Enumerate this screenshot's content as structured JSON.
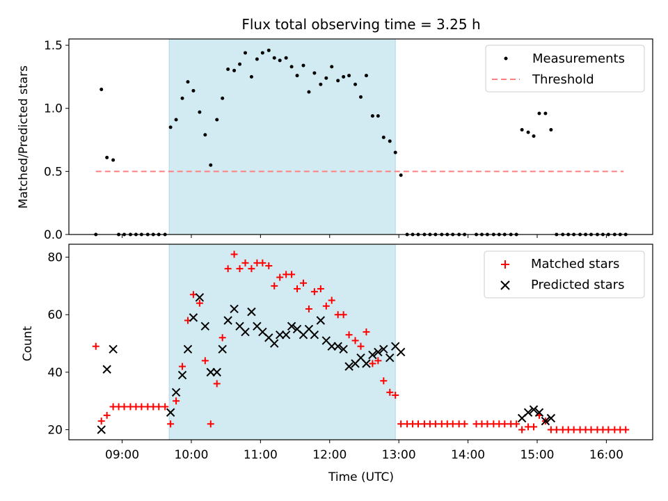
{
  "title": "Flux total observing time = 3.25 h",
  "colors": {
    "span": "#add8e6",
    "measure": "#000000",
    "threshold": "#ff7f7f",
    "matched": "#ff0000",
    "predicted": "#000000"
  },
  "chart_data": [
    {
      "type": "scatter",
      "ylabel": "Matched/Predicted stars",
      "ylim": [
        0,
        1.55
      ],
      "yticks": [
        "0.0",
        "0.5",
        "1.0",
        "1.5"
      ],
      "legend": [
        "Measurements",
        "Threshold"
      ],
      "threshold": 0.5,
      "threshold_range_h": [
        8.62,
        16.25
      ],
      "observing_span_h": [
        9.68,
        12.95
      ],
      "series": [
        {
          "name": "Measurements",
          "points": [
            [
              8.62,
              0
            ],
            [
              8.7,
              1.15
            ],
            [
              8.78,
              0.61
            ],
            [
              8.87,
              0.59
            ],
            [
              8.95,
              0
            ],
            [
              9.03,
              0
            ],
            [
              9.12,
              0
            ],
            [
              9.2,
              0
            ],
            [
              9.28,
              0
            ],
            [
              9.37,
              0
            ],
            [
              9.45,
              0
            ],
            [
              9.53,
              0
            ],
            [
              9.62,
              0
            ],
            [
              9.7,
              0.85
            ],
            [
              9.78,
              0.91
            ],
            [
              9.87,
              1.08
            ],
            [
              9.95,
              1.21
            ],
            [
              10.03,
              1.14
            ],
            [
              10.12,
              0.97
            ],
            [
              10.2,
              0.79
            ],
            [
              10.28,
              0.55
            ],
            [
              10.37,
              0.91
            ],
            [
              10.45,
              1.08
            ],
            [
              10.53,
              1.31
            ],
            [
              10.62,
              1.3
            ],
            [
              10.7,
              1.35
            ],
            [
              10.78,
              1.44
            ],
            [
              10.87,
              1.25
            ],
            [
              10.95,
              1.39
            ],
            [
              11.03,
              1.44
            ],
            [
              11.12,
              1.46
            ],
            [
              11.2,
              1.4
            ],
            [
              11.28,
              1.38
            ],
            [
              11.37,
              1.4
            ],
            [
              11.45,
              1.33
            ],
            [
              11.53,
              1.26
            ],
            [
              11.62,
              1.34
            ],
            [
              11.7,
              1.13
            ],
            [
              11.78,
              1.28
            ],
            [
              11.87,
              1.19
            ],
            [
              11.95,
              1.24
            ],
            [
              12.03,
              1.33
            ],
            [
              12.12,
              1.22
            ],
            [
              12.2,
              1.25
            ],
            [
              12.28,
              1.26
            ],
            [
              12.37,
              1.19
            ],
            [
              12.45,
              1.09
            ],
            [
              12.53,
              1.26
            ],
            [
              12.62,
              0.94
            ],
            [
              12.7,
              0.94
            ],
            [
              12.78,
              0.77
            ],
            [
              12.87,
              0.74
            ],
            [
              12.95,
              0.65
            ],
            [
              13.03,
              0.47
            ],
            [
              13.12,
              0
            ],
            [
              13.2,
              0
            ],
            [
              13.28,
              0
            ],
            [
              13.37,
              0
            ],
            [
              13.45,
              0
            ],
            [
              13.53,
              0
            ],
            [
              13.62,
              0
            ],
            [
              13.7,
              0
            ],
            [
              13.78,
              0
            ],
            [
              13.87,
              0
            ],
            [
              13.95,
              0
            ],
            [
              14.12,
              0
            ],
            [
              14.2,
              0
            ],
            [
              14.28,
              0
            ],
            [
              14.37,
              0
            ],
            [
              14.45,
              0
            ],
            [
              14.53,
              0
            ],
            [
              14.62,
              0
            ],
            [
              14.7,
              0
            ],
            [
              14.78,
              0.83
            ],
            [
              14.87,
              0.81
            ],
            [
              14.95,
              0.78
            ],
            [
              15.03,
              0.96
            ],
            [
              15.12,
              0.96
            ],
            [
              15.2,
              0.83
            ],
            [
              15.28,
              0
            ],
            [
              15.37,
              0
            ],
            [
              15.45,
              0
            ],
            [
              15.53,
              0
            ],
            [
              15.62,
              0
            ],
            [
              15.7,
              0
            ],
            [
              15.78,
              0
            ],
            [
              15.87,
              0
            ],
            [
              15.95,
              0
            ],
            [
              16.03,
              0
            ],
            [
              16.12,
              0
            ],
            [
              16.2,
              0
            ],
            [
              16.28,
              0
            ]
          ]
        }
      ]
    },
    {
      "type": "scatter",
      "xlabel": "Time (UTC)",
      "ylabel": "Count",
      "ylim": [
        16.5,
        84.5
      ],
      "yticks": [
        "20",
        "40",
        "60",
        "80"
      ],
      "xticks": [
        "09:00",
        "10:00",
        "11:00",
        "12:00",
        "13:00",
        "14:00",
        "15:00",
        "16:00"
      ],
      "xlim_h": [
        8.23,
        16.67
      ],
      "legend": [
        "Matched stars",
        "Predicted stars"
      ],
      "series": [
        {
          "name": "Matched stars",
          "points": [
            [
              8.62,
              49
            ],
            [
              8.7,
              23
            ],
            [
              8.78,
              25
            ],
            [
              8.87,
              28
            ],
            [
              8.95,
              28
            ],
            [
              9.03,
              28
            ],
            [
              9.12,
              28
            ],
            [
              9.2,
              28
            ],
            [
              9.28,
              28
            ],
            [
              9.37,
              28
            ],
            [
              9.45,
              28
            ],
            [
              9.53,
              28
            ],
            [
              9.62,
              28
            ],
            [
              9.7,
              22
            ],
            [
              9.78,
              30
            ],
            [
              9.87,
              42
            ],
            [
              9.95,
              58
            ],
            [
              10.03,
              67
            ],
            [
              10.12,
              64
            ],
            [
              10.2,
              44
            ],
            [
              10.28,
              22
            ],
            [
              10.37,
              36
            ],
            [
              10.45,
              52
            ],
            [
              10.53,
              76
            ],
            [
              10.62,
              81
            ],
            [
              10.7,
              76
            ],
            [
              10.78,
              78
            ],
            [
              10.87,
              76
            ],
            [
              10.95,
              78
            ],
            [
              11.03,
              78
            ],
            [
              11.12,
              77
            ],
            [
              11.2,
              70
            ],
            [
              11.28,
              73
            ],
            [
              11.37,
              74
            ],
            [
              11.45,
              74
            ],
            [
              11.53,
              69
            ],
            [
              11.62,
              71
            ],
            [
              11.7,
              62
            ],
            [
              11.78,
              68
            ],
            [
              11.87,
              69
            ],
            [
              11.95,
              63
            ],
            [
              12.03,
              65
            ],
            [
              12.12,
              60
            ],
            [
              12.2,
              60
            ],
            [
              12.28,
              53
            ],
            [
              12.37,
              51
            ],
            [
              12.45,
              49
            ],
            [
              12.53,
              54
            ],
            [
              12.62,
              43
            ],
            [
              12.7,
              44
            ],
            [
              12.78,
              37
            ],
            [
              12.87,
              33
            ],
            [
              12.95,
              32
            ],
            [
              13.03,
              22
            ],
            [
              13.12,
              22
            ],
            [
              13.2,
              22
            ],
            [
              13.28,
              22
            ],
            [
              13.37,
              22
            ],
            [
              13.45,
              22
            ],
            [
              13.53,
              22
            ],
            [
              13.62,
              22
            ],
            [
              13.7,
              22
            ],
            [
              13.78,
              22
            ],
            [
              13.87,
              22
            ],
            [
              13.95,
              22
            ],
            [
              14.12,
              22
            ],
            [
              14.2,
              22
            ],
            [
              14.28,
              22
            ],
            [
              14.37,
              22
            ],
            [
              14.45,
              22
            ],
            [
              14.53,
              22
            ],
            [
              14.62,
              22
            ],
            [
              14.7,
              22
            ],
            [
              14.78,
              20
            ],
            [
              14.87,
              21
            ],
            [
              14.95,
              21
            ],
            [
              15.03,
              25
            ],
            [
              15.12,
              23
            ],
            [
              15.2,
              20
            ],
            [
              15.28,
              20
            ],
            [
              15.37,
              20
            ],
            [
              15.45,
              20
            ],
            [
              15.53,
              20
            ],
            [
              15.62,
              20
            ],
            [
              15.7,
              20
            ],
            [
              15.78,
              20
            ],
            [
              15.87,
              20
            ],
            [
              15.95,
              20
            ],
            [
              16.03,
              20
            ],
            [
              16.12,
              20
            ],
            [
              16.2,
              20
            ],
            [
              16.28,
              20
            ]
          ]
        },
        {
          "name": "Predicted stars",
          "points": [
            [
              8.7,
              20
            ],
            [
              8.78,
              41
            ],
            [
              8.87,
              48
            ],
            [
              9.7,
              26
            ],
            [
              9.78,
              33
            ],
            [
              9.87,
              39
            ],
            [
              9.95,
              48
            ],
            [
              10.03,
              59
            ],
            [
              10.12,
              66
            ],
            [
              10.2,
              56
            ],
            [
              10.28,
              40
            ],
            [
              10.37,
              40
            ],
            [
              10.45,
              48
            ],
            [
              10.53,
              58
            ],
            [
              10.62,
              62
            ],
            [
              10.7,
              56
            ],
            [
              10.78,
              54
            ],
            [
              10.87,
              61
            ],
            [
              10.95,
              56
            ],
            [
              11.03,
              54
            ],
            [
              11.12,
              52
            ],
            [
              11.2,
              50
            ],
            [
              11.28,
              53
            ],
            [
              11.37,
              53
            ],
            [
              11.45,
              56
            ],
            [
              11.53,
              55
            ],
            [
              11.62,
              53
            ],
            [
              11.7,
              55
            ],
            [
              11.78,
              53
            ],
            [
              11.87,
              58
            ],
            [
              11.95,
              51
            ],
            [
              12.03,
              49
            ],
            [
              12.12,
              49
            ],
            [
              12.2,
              48
            ],
            [
              12.28,
              42
            ],
            [
              12.37,
              43
            ],
            [
              12.45,
              45
            ],
            [
              12.53,
              43
            ],
            [
              12.62,
              46
            ],
            [
              12.7,
              47
            ],
            [
              12.78,
              48
            ],
            [
              12.87,
              45
            ],
            [
              12.95,
              49
            ],
            [
              13.03,
              47
            ],
            [
              14.78,
              24
            ],
            [
              14.87,
              26
            ],
            [
              14.95,
              27
            ],
            [
              15.03,
              26
            ],
            [
              15.12,
              23
            ],
            [
              15.2,
              24
            ]
          ]
        }
      ]
    }
  ]
}
